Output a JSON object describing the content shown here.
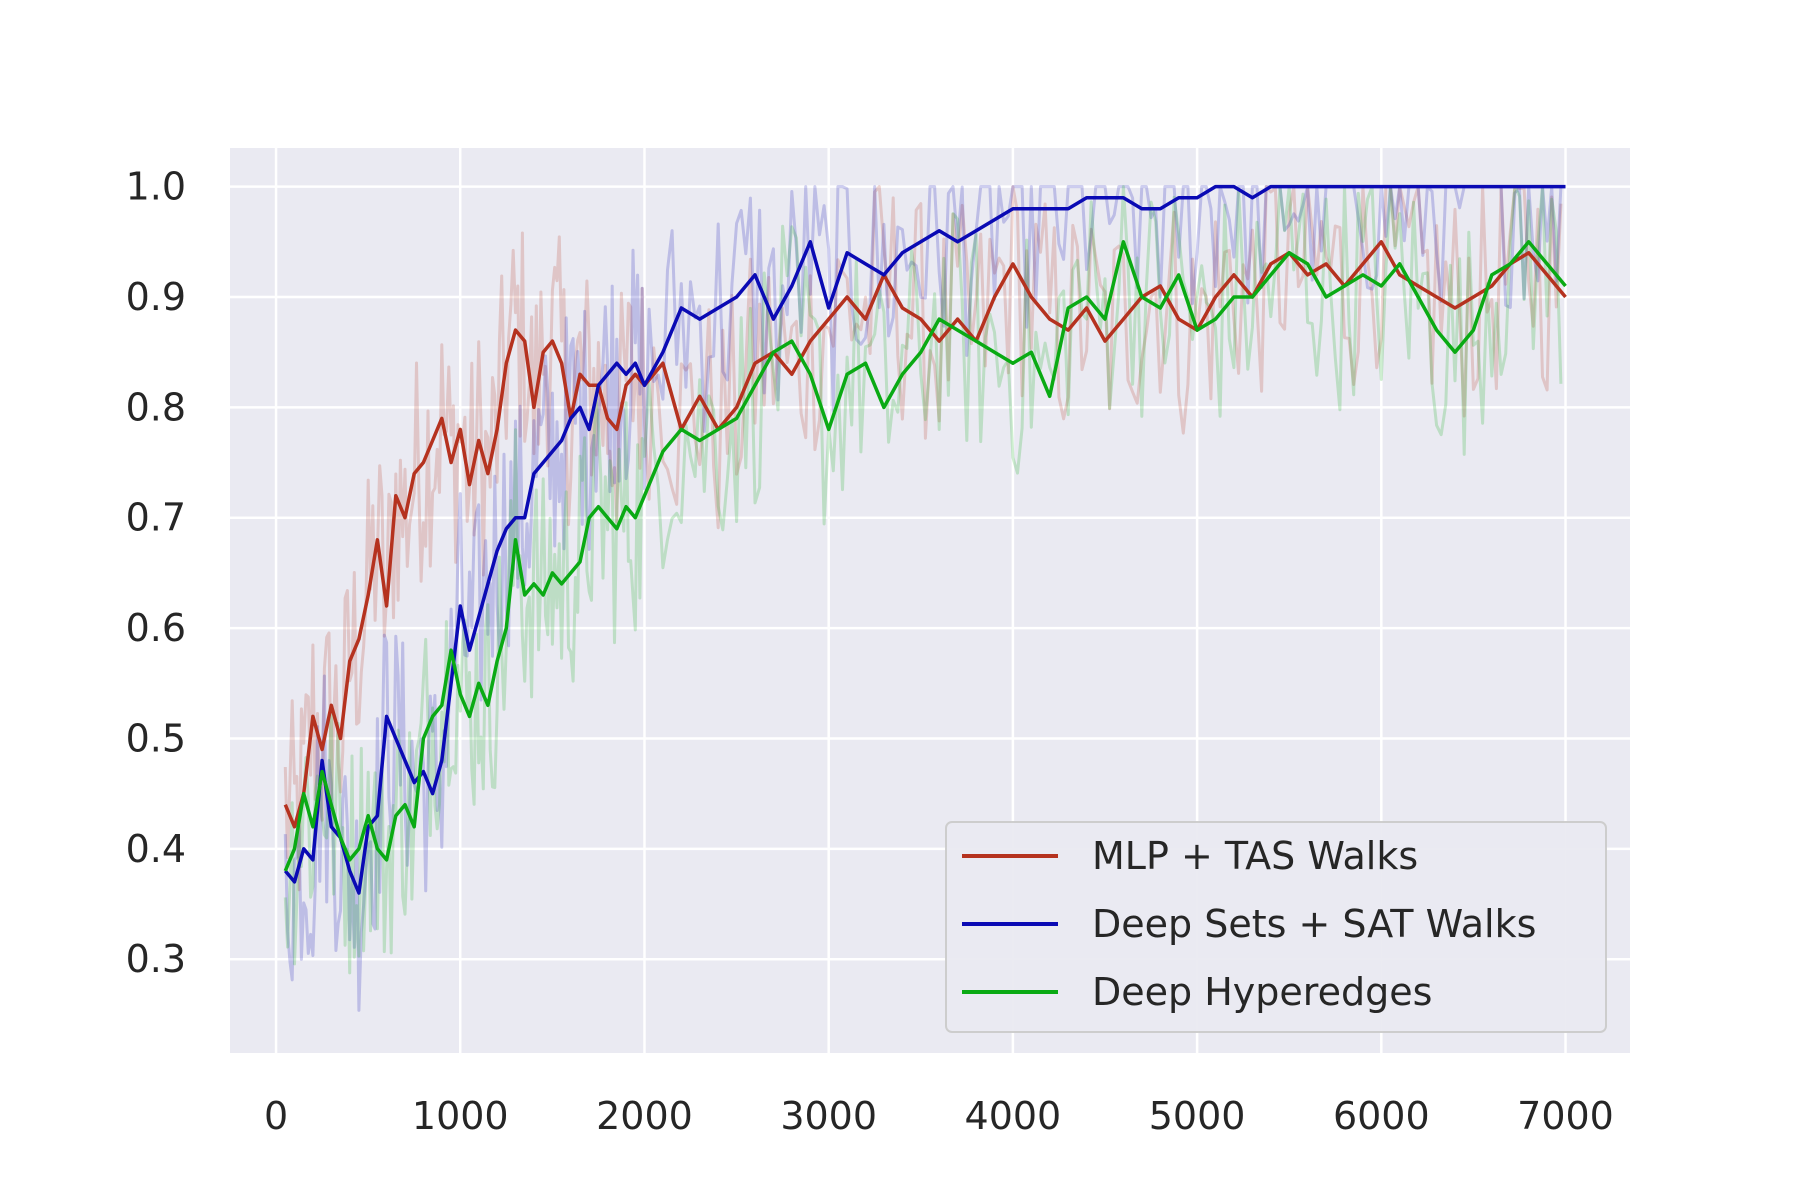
{
  "chart_data": {
    "type": "line",
    "title": "",
    "xlabel": "",
    "ylabel": "",
    "xlim": [
      -250,
      7350
    ],
    "ylim": [
      0.215,
      1.035
    ],
    "xticks": [
      0,
      1000,
      2000,
      3000,
      4000,
      5000,
      6000,
      7000
    ],
    "yticks": [
      0.3,
      0.4,
      0.5,
      0.6,
      0.7,
      0.8,
      0.9,
      1.0
    ],
    "ytick_labels": [
      "0.3",
      "0.4",
      "0.5",
      "0.6",
      "0.7",
      "0.8",
      "0.9",
      "1.0"
    ],
    "grid": true,
    "legend_position": "lower-right",
    "series": [
      {
        "name": "MLP + TAS Walks",
        "color": "#b5321f",
        "x": [
          50,
          100,
          150,
          200,
          250,
          300,
          350,
          400,
          450,
          500,
          550,
          600,
          650,
          700,
          750,
          800,
          850,
          900,
          950,
          1000,
          1050,
          1100,
          1150,
          1200,
          1250,
          1300,
          1350,
          1400,
          1450,
          1500,
          1550,
          1600,
          1650,
          1700,
          1750,
          1800,
          1850,
          1900,
          1950,
          2000,
          2100,
          2200,
          2300,
          2400,
          2500,
          2600,
          2700,
          2800,
          2900,
          3000,
          3100,
          3200,
          3300,
          3400,
          3500,
          3600,
          3700,
          3800,
          3900,
          4000,
          4100,
          4200,
          4300,
          4400,
          4500,
          4600,
          4700,
          4800,
          4900,
          5000,
          5100,
          5200,
          5300,
          5400,
          5500,
          5600,
          5700,
          5800,
          5900,
          6000,
          6100,
          6200,
          6300,
          6400,
          6500,
          6600,
          6700,
          6800,
          6900,
          7000
        ],
        "values": [
          0.44,
          0.42,
          0.45,
          0.52,
          0.49,
          0.53,
          0.5,
          0.57,
          0.59,
          0.63,
          0.68,
          0.62,
          0.72,
          0.7,
          0.74,
          0.75,
          0.77,
          0.79,
          0.75,
          0.78,
          0.73,
          0.77,
          0.74,
          0.78,
          0.84,
          0.87,
          0.86,
          0.8,
          0.85,
          0.86,
          0.84,
          0.79,
          0.83,
          0.82,
          0.82,
          0.79,
          0.78,
          0.82,
          0.83,
          0.82,
          0.84,
          0.78,
          0.81,
          0.78,
          0.8,
          0.84,
          0.85,
          0.83,
          0.86,
          0.88,
          0.9,
          0.88,
          0.92,
          0.89,
          0.88,
          0.86,
          0.88,
          0.86,
          0.9,
          0.93,
          0.9,
          0.88,
          0.87,
          0.89,
          0.86,
          0.88,
          0.9,
          0.91,
          0.88,
          0.87,
          0.9,
          0.92,
          0.9,
          0.93,
          0.94,
          0.92,
          0.93,
          0.91,
          0.93,
          0.95,
          0.92,
          0.91,
          0.9,
          0.89,
          0.9,
          0.91,
          0.93,
          0.94,
          0.92,
          0.9
        ]
      },
      {
        "name": "Deep Sets + SAT Walks",
        "color": "#0a0ab4",
        "x": [
          50,
          100,
          150,
          200,
          250,
          300,
          350,
          400,
          450,
          500,
          550,
          600,
          650,
          700,
          750,
          800,
          850,
          900,
          950,
          1000,
          1050,
          1100,
          1150,
          1200,
          1250,
          1300,
          1350,
          1400,
          1450,
          1500,
          1550,
          1600,
          1650,
          1700,
          1750,
          1800,
          1850,
          1900,
          1950,
          2000,
          2100,
          2200,
          2300,
          2400,
          2500,
          2600,
          2700,
          2800,
          2900,
          3000,
          3100,
          3200,
          3300,
          3400,
          3500,
          3600,
          3700,
          3800,
          3900,
          4000,
          4100,
          4200,
          4300,
          4400,
          4500,
          4600,
          4700,
          4800,
          4900,
          5000,
          5100,
          5200,
          5300,
          5400,
          5500,
          5600,
          5700,
          5800,
          5900,
          6000,
          6100,
          6200,
          6300,
          6400,
          6500,
          6600,
          6700,
          6800,
          6900,
          7000
        ],
        "values": [
          0.38,
          0.37,
          0.4,
          0.39,
          0.48,
          0.42,
          0.41,
          0.38,
          0.36,
          0.42,
          0.43,
          0.52,
          0.5,
          0.48,
          0.46,
          0.47,
          0.45,
          0.48,
          0.55,
          0.62,
          0.58,
          0.61,
          0.64,
          0.67,
          0.69,
          0.7,
          0.7,
          0.74,
          0.75,
          0.76,
          0.77,
          0.79,
          0.8,
          0.78,
          0.82,
          0.83,
          0.84,
          0.83,
          0.84,
          0.82,
          0.85,
          0.89,
          0.88,
          0.89,
          0.9,
          0.92,
          0.88,
          0.91,
          0.95,
          0.89,
          0.94,
          0.93,
          0.92,
          0.94,
          0.95,
          0.96,
          0.95,
          0.96,
          0.97,
          0.98,
          0.98,
          0.98,
          0.98,
          0.99,
          0.99,
          0.99,
          0.98,
          0.98,
          0.99,
          0.99,
          1.0,
          1.0,
          0.99,
          1.0,
          1.0,
          1.0,
          1.0,
          1.0,
          1.0,
          1.0,
          1.0,
          1.0,
          1.0,
          1.0,
          1.0,
          1.0,
          1.0,
          1.0,
          1.0,
          1.0
        ]
      },
      {
        "name": "Deep Hyperedges",
        "color": "#0aaa14",
        "x": [
          50,
          100,
          150,
          200,
          250,
          300,
          350,
          400,
          450,
          500,
          550,
          600,
          650,
          700,
          750,
          800,
          850,
          900,
          950,
          1000,
          1050,
          1100,
          1150,
          1200,
          1250,
          1300,
          1350,
          1400,
          1450,
          1500,
          1550,
          1600,
          1650,
          1700,
          1750,
          1800,
          1850,
          1900,
          1950,
          2000,
          2100,
          2200,
          2300,
          2400,
          2500,
          2600,
          2700,
          2800,
          2900,
          3000,
          3100,
          3200,
          3300,
          3400,
          3500,
          3600,
          3700,
          3800,
          3900,
          4000,
          4100,
          4200,
          4300,
          4400,
          4500,
          4600,
          4700,
          4800,
          4900,
          5000,
          5100,
          5200,
          5300,
          5400,
          5500,
          5600,
          5700,
          5800,
          5900,
          6000,
          6100,
          6200,
          6300,
          6400,
          6500,
          6600,
          6700,
          6800,
          6900,
          7000
        ],
        "values": [
          0.38,
          0.4,
          0.45,
          0.42,
          0.47,
          0.44,
          0.41,
          0.39,
          0.4,
          0.43,
          0.4,
          0.39,
          0.43,
          0.44,
          0.42,
          0.5,
          0.52,
          0.53,
          0.58,
          0.54,
          0.52,
          0.55,
          0.53,
          0.57,
          0.6,
          0.68,
          0.63,
          0.64,
          0.63,
          0.65,
          0.64,
          0.65,
          0.66,
          0.7,
          0.71,
          0.7,
          0.69,
          0.71,
          0.7,
          0.72,
          0.76,
          0.78,
          0.77,
          0.78,
          0.79,
          0.82,
          0.85,
          0.86,
          0.83,
          0.78,
          0.83,
          0.84,
          0.8,
          0.83,
          0.85,
          0.88,
          0.87,
          0.86,
          0.85,
          0.84,
          0.85,
          0.81,
          0.89,
          0.9,
          0.88,
          0.95,
          0.9,
          0.89,
          0.92,
          0.87,
          0.88,
          0.9,
          0.9,
          0.92,
          0.94,
          0.93,
          0.9,
          0.91,
          0.92,
          0.91,
          0.93,
          0.9,
          0.87,
          0.85,
          0.87,
          0.92,
          0.93,
          0.95,
          0.93,
          0.91
        ]
      }
    ]
  }
}
